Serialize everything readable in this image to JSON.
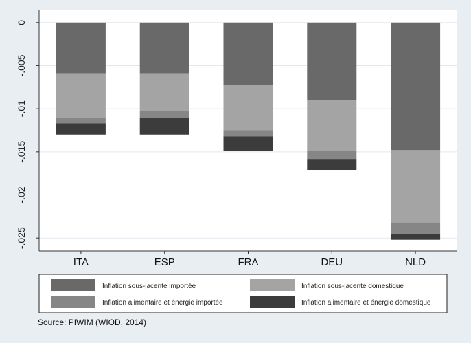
{
  "chart_data": {
    "type": "bar",
    "stacked": true,
    "title": "",
    "xlabel": "",
    "ylabel": "",
    "categories": [
      "ITA",
      "ESP",
      "FRA",
      "DEU",
      "NLD"
    ],
    "series": [
      {
        "name": "Inflation sous-jacente importée",
        "color": "#696969",
        "values": [
          -0.0059,
          -0.0059,
          -0.0072,
          -0.009,
          -0.0148
        ]
      },
      {
        "name": "Inflation sous-jacente domestique",
        "color": "#a4a4a4",
        "values": [
          -0.0052,
          -0.0044,
          -0.0053,
          -0.0059,
          -0.0084
        ]
      },
      {
        "name": "Inflation alimentaire et énergie importée",
        "color": "#868686",
        "values": [
          -0.0006,
          -0.0008,
          -0.0007,
          -0.001,
          -0.0013
        ]
      },
      {
        "name": "Inflation alimentaire et énergie domestique",
        "color": "#3c3c3c",
        "values": [
          -0.0013,
          -0.0019,
          -0.0017,
          -0.0012,
          -0.0007
        ]
      }
    ],
    "ylim": [
      -0.0265,
      0.0015
    ],
    "yticks": [
      0,
      -0.005,
      -0.01,
      -0.015,
      -0.02,
      -0.025
    ],
    "ytick_labels": [
      "0",
      "-.005",
      "-.01",
      "-.015",
      "-.02",
      "-.025"
    ],
    "grid": true,
    "legend_position": "bottom",
    "source": "Source: PIWIM (WIOD, 2014)"
  }
}
